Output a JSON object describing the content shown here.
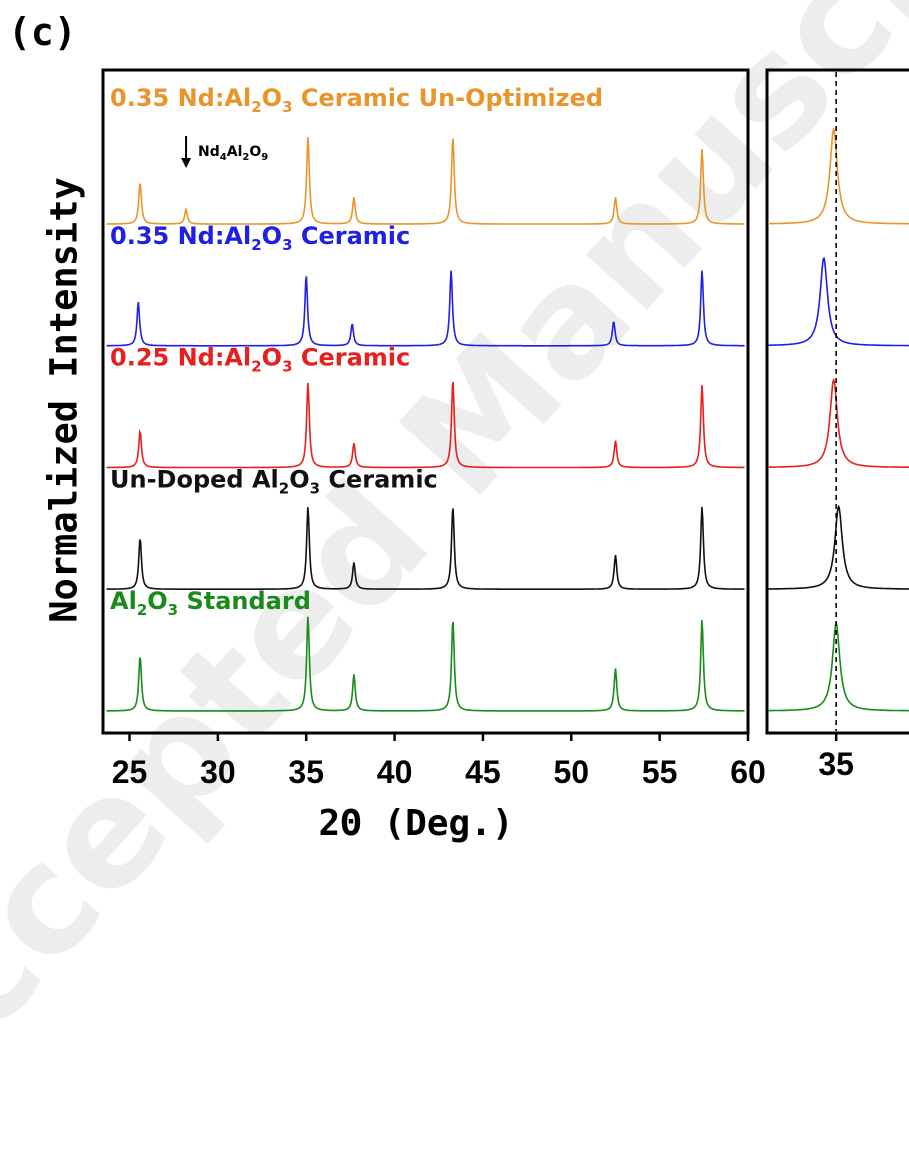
{
  "panel_label": "(c)",
  "watermark": "Accepted Manuscript",
  "chart_data": [
    {
      "type": "line",
      "panel": "main",
      "xlabel": "2Θ (Deg.)",
      "ylabel": "Normalized Intensity",
      "xlim": [
        23.5,
        60
      ],
      "ylim": [
        0,
        5.2
      ],
      "xticks": [
        25,
        30,
        35,
        40,
        45,
        50,
        55,
        60
      ],
      "peak_positions": [
        25.6,
        28.2,
        35.1,
        37.7,
        43.3,
        52.5,
        57.4
      ],
      "series": [
        {
          "name": "0.35 Nd:Al2O3 Ceramic Un-Optimized",
          "label_parts": [
            "0.35 Nd:Al",
            "2",
            "O",
            "3",
            " Ceramic Un-Optimized"
          ],
          "color": "#e8962c",
          "offset": 4.0,
          "peaks": [
            [
              25.6,
              0.34
            ],
            [
              28.2,
              0.12
            ],
            [
              35.1,
              0.72
            ],
            [
              37.7,
              0.22
            ],
            [
              43.3,
              0.72
            ],
            [
              52.5,
              0.22
            ],
            [
              57.4,
              0.62
            ]
          ]
        },
        {
          "name": "0.35 Nd:Al2O3 Ceramic",
          "label_parts": [
            "0.35 Nd:Al",
            "2",
            "O",
            "3",
            " Ceramic"
          ],
          "color": "#1f1fe6",
          "offset": 3.0,
          "peaks": [
            [
              25.5,
              0.36
            ],
            [
              35.0,
              0.58
            ],
            [
              37.6,
              0.18
            ],
            [
              43.2,
              0.62
            ],
            [
              52.4,
              0.2
            ],
            [
              57.4,
              0.62
            ]
          ]
        },
        {
          "name": "0.25 Nd:Al2O3 Ceramic",
          "label_parts": [
            "0.25 Nd:Al",
            "2",
            "O",
            "3",
            " Ceramic"
          ],
          "color": "#e81f1f",
          "offset": 2.0,
          "peaks": [
            [
              25.6,
              0.3
            ],
            [
              35.1,
              0.7
            ],
            [
              37.7,
              0.2
            ],
            [
              43.3,
              0.72
            ],
            [
              52.5,
              0.22
            ],
            [
              57.4,
              0.68
            ]
          ]
        },
        {
          "name": "Un-Doped Al2O3 Ceramic",
          "label_parts": [
            "Un-Doped Al",
            "2",
            "O",
            "3",
            " Ceramic"
          ],
          "color": "#111111",
          "offset": 1.0,
          "peaks": [
            [
              25.6,
              0.42
            ],
            [
              35.1,
              0.68
            ],
            [
              37.7,
              0.22
            ],
            [
              43.3,
              0.68
            ],
            [
              52.5,
              0.28
            ],
            [
              57.4,
              0.68
            ]
          ]
        },
        {
          "name": "Al2O3 Standard",
          "label_parts": [
            "Al",
            "2",
            "O",
            "3",
            " Standard"
          ],
          "color": "#1a8a1a",
          "offset": 0.0,
          "peaks": [
            [
              25.6,
              0.45
            ],
            [
              35.1,
              0.78
            ],
            [
              37.7,
              0.3
            ],
            [
              43.3,
              0.75
            ],
            [
              52.5,
              0.35
            ],
            [
              57.4,
              0.75
            ]
          ]
        }
      ],
      "annotations": [
        {
          "text_parts": [
            "Nd",
            "4",
            "Al",
            "2",
            "O",
            "9"
          ],
          "arrow_to_x": 28.2,
          "series": "0.35 Nd:Al2O3 Ceramic Un-Optimized"
        }
      ]
    },
    {
      "type": "line",
      "panel": "zoom",
      "xlim": [
        33.6,
        36.9
      ],
      "xticks": [
        35
      ],
      "reference_line_x": 35.0,
      "reference_line_style": "dashed",
      "series_peaks": [
        {
          "color": "#e8962c",
          "offset": 4.0,
          "center": 34.95,
          "height": 0.78
        },
        {
          "color": "#1f1fe6",
          "offset": 3.0,
          "center": 34.75,
          "height": 0.72
        },
        {
          "color": "#e81f1f",
          "offset": 2.0,
          "center": 34.95,
          "height": 0.72
        },
        {
          "color": "#111111",
          "offset": 1.0,
          "center": 35.05,
          "height": 0.68
        },
        {
          "color": "#1a8a1a",
          "offset": 0.0,
          "center": 35.0,
          "height": 0.72
        }
      ]
    }
  ]
}
